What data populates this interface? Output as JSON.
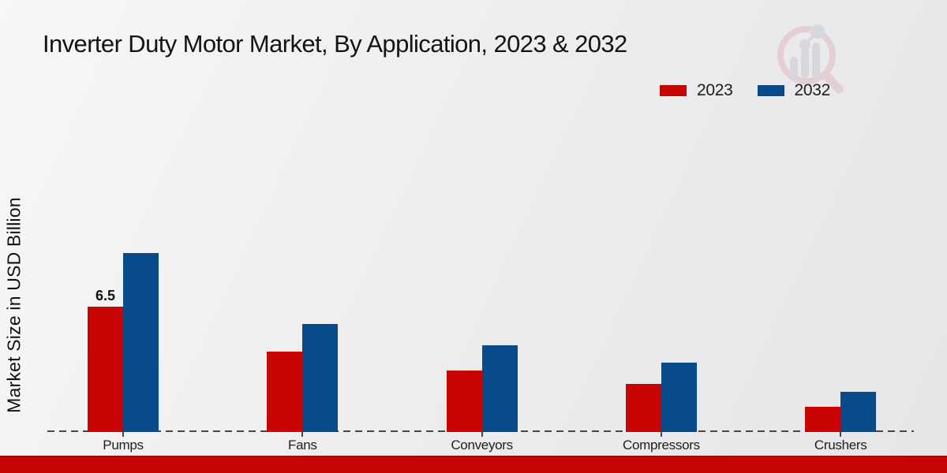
{
  "header": {
    "title": "Inverter Duty Motor Market, By Application, 2023 & 2032"
  },
  "icons": {
    "watermark": "bar-chart-magnifier-logo-icon"
  },
  "colors": {
    "series_2023": "#c80404",
    "series_2032": "#084b8a",
    "bottom_strip": "#c40606",
    "background": "#ededee"
  },
  "chart_data": {
    "type": "bar",
    "title": "Inverter Duty Motor Market, By Application, 2023 & 2032",
    "xlabel": "",
    "ylabel": "Market Size in USD Billion",
    "categories": [
      "Pumps",
      "Fans",
      "Conveyors",
      "Compressors",
      "Crushers"
    ],
    "series": [
      {
        "name": "2023",
        "color": "#c80404",
        "values": [
          6.5,
          4.2,
          3.2,
          2.5,
          1.3
        ]
      },
      {
        "name": "2032",
        "color": "#084b8a",
        "values": [
          9.3,
          5.6,
          4.5,
          3.6,
          2.1
        ]
      }
    ],
    "data_labels": [
      {
        "series_index": 0,
        "category_index": 0,
        "text": "6.5"
      }
    ],
    "legend_position": "top-right",
    "grid": false,
    "axis_style": "dashed-zero-line",
    "ylim": [
      0,
      10
    ]
  }
}
